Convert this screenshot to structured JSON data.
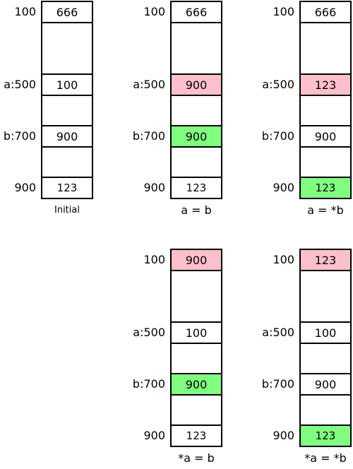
{
  "colors": {
    "pink": "#ffc0cb",
    "green": "#80ff80",
    "line": "#000000"
  },
  "address_labels": [
    "100",
    "a:500",
    "b:700",
    "900"
  ],
  "panels": [
    {
      "id": "p1",
      "caption": "Initial",
      "caption_small": true,
      "cells": [
        {
          "value": "666",
          "hl": ""
        },
        {
          "value": "100",
          "hl": ""
        },
        {
          "value": "900",
          "hl": ""
        },
        {
          "value": "123",
          "hl": ""
        }
      ]
    },
    {
      "id": "p2",
      "caption": "a = b",
      "cells": [
        {
          "value": "666",
          "hl": ""
        },
        {
          "value": "900",
          "hl": "pink"
        },
        {
          "value": "900",
          "hl": "green"
        },
        {
          "value": "123",
          "hl": ""
        }
      ]
    },
    {
      "id": "p3",
      "caption": "a = *b",
      "cells": [
        {
          "value": "666",
          "hl": ""
        },
        {
          "value": "123",
          "hl": "pink"
        },
        {
          "value": "900",
          "hl": ""
        },
        {
          "value": "123",
          "hl": "green"
        }
      ]
    },
    {
      "id": "p4",
      "caption": "*a = b",
      "cells": [
        {
          "value": "900",
          "hl": "pink"
        },
        {
          "value": "100",
          "hl": ""
        },
        {
          "value": "900",
          "hl": "green"
        },
        {
          "value": "123",
          "hl": ""
        }
      ]
    },
    {
      "id": "p5",
      "caption": "*a = *b",
      "cells": [
        {
          "value": "123",
          "hl": "pink"
        },
        {
          "value": "100",
          "hl": ""
        },
        {
          "value": "900",
          "hl": ""
        },
        {
          "value": "123",
          "hl": "green"
        }
      ]
    }
  ]
}
